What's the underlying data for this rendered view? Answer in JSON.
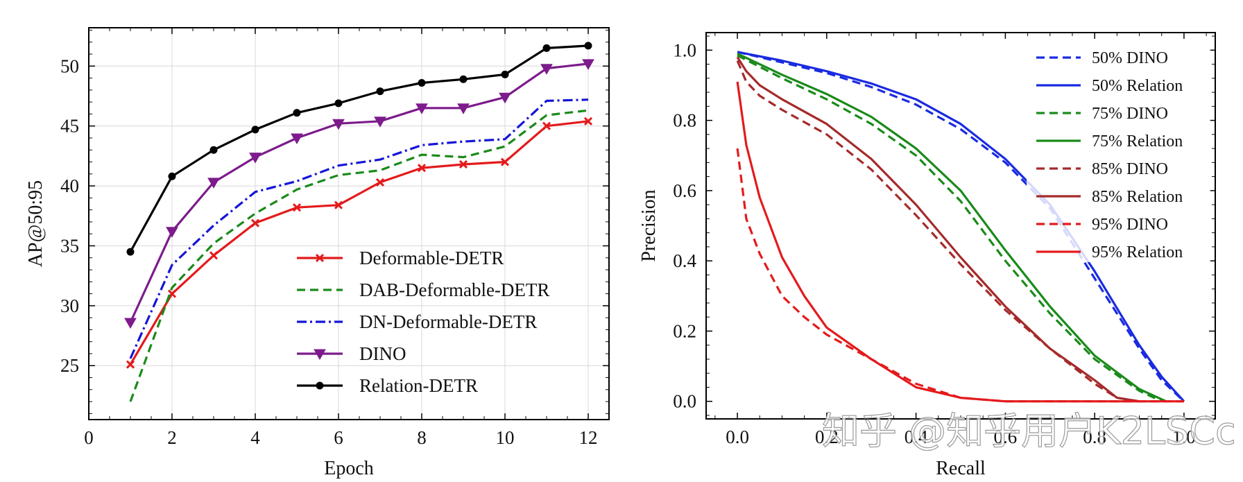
{
  "watermark": "知乎 @知乎用户K2LSCc",
  "chart_data": [
    {
      "type": "line",
      "title": "",
      "xlabel": "Epoch",
      "ylabel": "AP@50:95",
      "xlim": [
        0,
        12.5
      ],
      "ylim": [
        20.5,
        53.2
      ],
      "xticks": [
        0,
        2,
        4,
        6,
        8,
        10,
        12
      ],
      "yticks": [
        25,
        30,
        35,
        40,
        45,
        50
      ],
      "grid": true,
      "legend_position": "bottom-right",
      "x": [
        1,
        2,
        3,
        4,
        5,
        6,
        7,
        8,
        9,
        10,
        11,
        12
      ],
      "series": [
        {
          "name": "Deformable-DETR",
          "color": "#e41a1c",
          "dash": "",
          "marker": "x",
          "values": [
            25.1,
            31.0,
            34.2,
            36.9,
            38.2,
            38.4,
            40.3,
            41.5,
            41.8,
            42.0,
            45.0,
            45.4
          ]
        },
        {
          "name": "DAB-Deformable-DETR",
          "color": "#1a8a1a",
          "dash": "12,7",
          "marker": "",
          "values": [
            22.0,
            31.5,
            35.2,
            37.7,
            39.7,
            40.9,
            41.3,
            42.6,
            42.4,
            43.3,
            45.9,
            46.3
          ]
        },
        {
          "name": "DN-Deformable-DETR",
          "color": "#1515d8",
          "dash": "14,5,3,5",
          "marker": "",
          "values": [
            25.6,
            33.4,
            36.7,
            39.5,
            40.4,
            41.7,
            42.2,
            43.4,
            43.7,
            43.9,
            47.1,
            47.2
          ]
        },
        {
          "name": "DINO",
          "color": "#7d1b8c",
          "dash": "",
          "marker": "triangle",
          "values": [
            28.6,
            36.2,
            40.3,
            42.4,
            44.0,
            45.2,
            45.4,
            46.5,
            46.5,
            47.4,
            49.8,
            50.2
          ]
        },
        {
          "name": "Relation-DETR",
          "color": "#000000",
          "dash": "",
          "marker": "circle",
          "values": [
            34.5,
            40.8,
            43.0,
            44.7,
            46.1,
            46.9,
            47.9,
            48.6,
            48.9,
            49.3,
            51.5,
            51.7
          ]
        }
      ]
    },
    {
      "type": "line",
      "title": "",
      "xlabel": "Recall",
      "ylabel": "Precision",
      "xlim": [
        -0.07,
        1.07
      ],
      "ylim": [
        -0.05,
        1.05
      ],
      "xticks": [
        "0.0",
        "0.2",
        "0.4",
        "0.6",
        "0.8",
        "1.0"
      ],
      "yticks": [
        "0.0",
        "0.2",
        "0.4",
        "0.6",
        "0.8",
        "1.0"
      ],
      "grid": false,
      "legend_position": "top-right",
      "series": [
        {
          "name": "50% DINO",
          "color": "#1a2be0",
          "dash": "12,7",
          "x": [
            0.0,
            0.1,
            0.2,
            0.3,
            0.4,
            0.5,
            0.6,
            0.7,
            0.8,
            0.9,
            0.95,
            1.0
          ],
          "y": [
            0.995,
            0.965,
            0.935,
            0.895,
            0.845,
            0.775,
            0.68,
            0.55,
            0.35,
            0.15,
            0.06,
            0.0
          ]
        },
        {
          "name": "50% Relation",
          "color": "#1a2be0",
          "dash": "",
          "x": [
            0.0,
            0.1,
            0.2,
            0.3,
            0.4,
            0.5,
            0.6,
            0.7,
            0.8,
            0.9,
            0.95,
            1.0
          ],
          "y": [
            0.995,
            0.97,
            0.94,
            0.905,
            0.86,
            0.79,
            0.69,
            0.56,
            0.37,
            0.16,
            0.07,
            0.0
          ]
        },
        {
          "name": "75% DINO",
          "color": "#1a8a1a",
          "dash": "12,7",
          "x": [
            0.0,
            0.1,
            0.2,
            0.3,
            0.4,
            0.5,
            0.6,
            0.7,
            0.8,
            0.9,
            0.95
          ],
          "y": [
            0.985,
            0.92,
            0.86,
            0.79,
            0.7,
            0.57,
            0.4,
            0.25,
            0.12,
            0.03,
            0.0
          ]
        },
        {
          "name": "75% Relation",
          "color": "#1a8a1a",
          "dash": "",
          "x": [
            0.0,
            0.1,
            0.2,
            0.3,
            0.4,
            0.5,
            0.6,
            0.7,
            0.8,
            0.9,
            0.96
          ],
          "y": [
            0.99,
            0.93,
            0.875,
            0.81,
            0.72,
            0.6,
            0.43,
            0.27,
            0.13,
            0.035,
            0.0
          ]
        },
        {
          "name": "85% DINO",
          "color": "#a52a2a",
          "dash": "12,7",
          "x": [
            0.0,
            0.02,
            0.05,
            0.1,
            0.2,
            0.3,
            0.4,
            0.5,
            0.6,
            0.7,
            0.8,
            0.85,
            0.9
          ],
          "y": [
            0.97,
            0.91,
            0.87,
            0.83,
            0.76,
            0.66,
            0.53,
            0.39,
            0.26,
            0.15,
            0.05,
            0.01,
            0.0
          ]
        },
        {
          "name": "85% Relation",
          "color": "#a52a2a",
          "dash": "",
          "x": [
            0.0,
            0.02,
            0.05,
            0.1,
            0.2,
            0.3,
            0.4,
            0.5,
            0.6,
            0.7,
            0.8,
            0.85,
            0.9
          ],
          "y": [
            0.98,
            0.94,
            0.9,
            0.86,
            0.79,
            0.69,
            0.56,
            0.41,
            0.27,
            0.15,
            0.06,
            0.01,
            0.0
          ]
        },
        {
          "name": "95% DINO",
          "color": "#e41a1c",
          "dash": "12,7",
          "x": [
            0.0,
            0.02,
            0.05,
            0.1,
            0.15,
            0.2,
            0.3,
            0.4,
            0.5,
            0.6,
            1.0
          ],
          "y": [
            0.72,
            0.52,
            0.42,
            0.3,
            0.24,
            0.19,
            0.12,
            0.05,
            0.01,
            0.0,
            0.0
          ]
        },
        {
          "name": "95% Relation",
          "color": "#e41a1c",
          "dash": "",
          "x": [
            0.0,
            0.02,
            0.05,
            0.1,
            0.15,
            0.2,
            0.3,
            0.4,
            0.5,
            0.6,
            1.0
          ],
          "y": [
            0.91,
            0.73,
            0.58,
            0.41,
            0.3,
            0.21,
            0.12,
            0.04,
            0.01,
            0.0,
            0.0
          ]
        }
      ]
    }
  ]
}
